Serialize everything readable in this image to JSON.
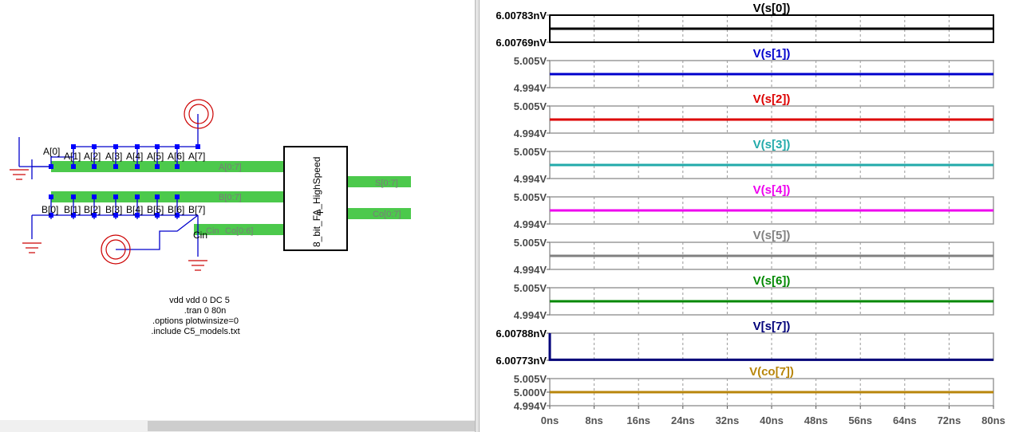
{
  "schematic": {
    "a_labels": [
      "A[0]",
      "A[1]",
      "A[2]",
      "A[3]",
      "A[4]",
      "A[5]",
      "A[6]",
      "A[7]"
    ],
    "b_labels": [
      "B[0]",
      "B[1]",
      "B[2]",
      "B[3]",
      "B[4]",
      "B[5]",
      "B[6]",
      "B[7]"
    ],
    "bus_a": "A[0:7]",
    "bus_b": "B[0:7]",
    "bus_cin": "Cin",
    "bus_co_in": "Co[0:6]",
    "out_s": "S[0:7]",
    "out_co": "Co[0:7]",
    "cin_label": "Cin",
    "component_name": "8_bit_FA_HighSpeed",
    "directives": [
      "vdd vdd 0 DC 5",
      ".tran 0 80n",
      ".options plotwinsize=0",
      ".include C5_models.txt"
    ],
    "colors": {
      "bus": "#4cc94c",
      "wire": "#0000cc",
      "junction": "#0000ff",
      "supply": "#cc0000"
    }
  },
  "waveform_panel": {
    "time_axis": {
      "unit": "ns",
      "range": [
        0,
        80
      ],
      "ticks": [
        "0ns",
        "8ns",
        "16ns",
        "24ns",
        "32ns",
        "40ns",
        "48ns",
        "56ns",
        "64ns",
        "72ns",
        "80ns"
      ]
    },
    "panes": [
      {
        "title": "V(s[0])",
        "color": "#000000",
        "y_top": "6.00783nV",
        "y_bottom": "6.00769nV",
        "level": 0.5,
        "dark_ticks": true
      },
      {
        "title": "V(s[1])",
        "color": "#0000cc",
        "y_top": "5.005V",
        "y_bottom": "4.994V",
        "level": 0.5
      },
      {
        "title": "V(s[2])",
        "color": "#dd0000",
        "y_top": "5.005V",
        "y_bottom": "4.994V",
        "level": 0.5
      },
      {
        "title": "V(s[3])",
        "color": "#22aaaa",
        "y_top": "5.005V",
        "y_bottom": "4.994V",
        "level": 0.5
      },
      {
        "title": "V(s[4])",
        "color": "#ee00ee",
        "y_top": "5.005V",
        "y_bottom": "4.994V",
        "level": 0.5
      },
      {
        "title": "V(s[5])",
        "color": "#808080",
        "y_top": "5.005V",
        "y_bottom": "4.994V",
        "level": 0.5
      },
      {
        "title": "V(s[6])",
        "color": "#008800",
        "y_top": "5.005V",
        "y_bottom": "4.994V",
        "level": 0.5
      },
      {
        "title": "V[s[7])",
        "color": "#00007a",
        "y_top": "6.00788nV",
        "y_bottom": "6.00773nV",
        "level": 0.02,
        "dark_ticks": true,
        "initial_spike": true
      },
      {
        "title": "V(co[7])",
        "color": "#b8860b",
        "y_top": "5.005V",
        "y_mid": "5.000V",
        "y_bottom": "4.994V",
        "level": 0.5
      }
    ]
  }
}
